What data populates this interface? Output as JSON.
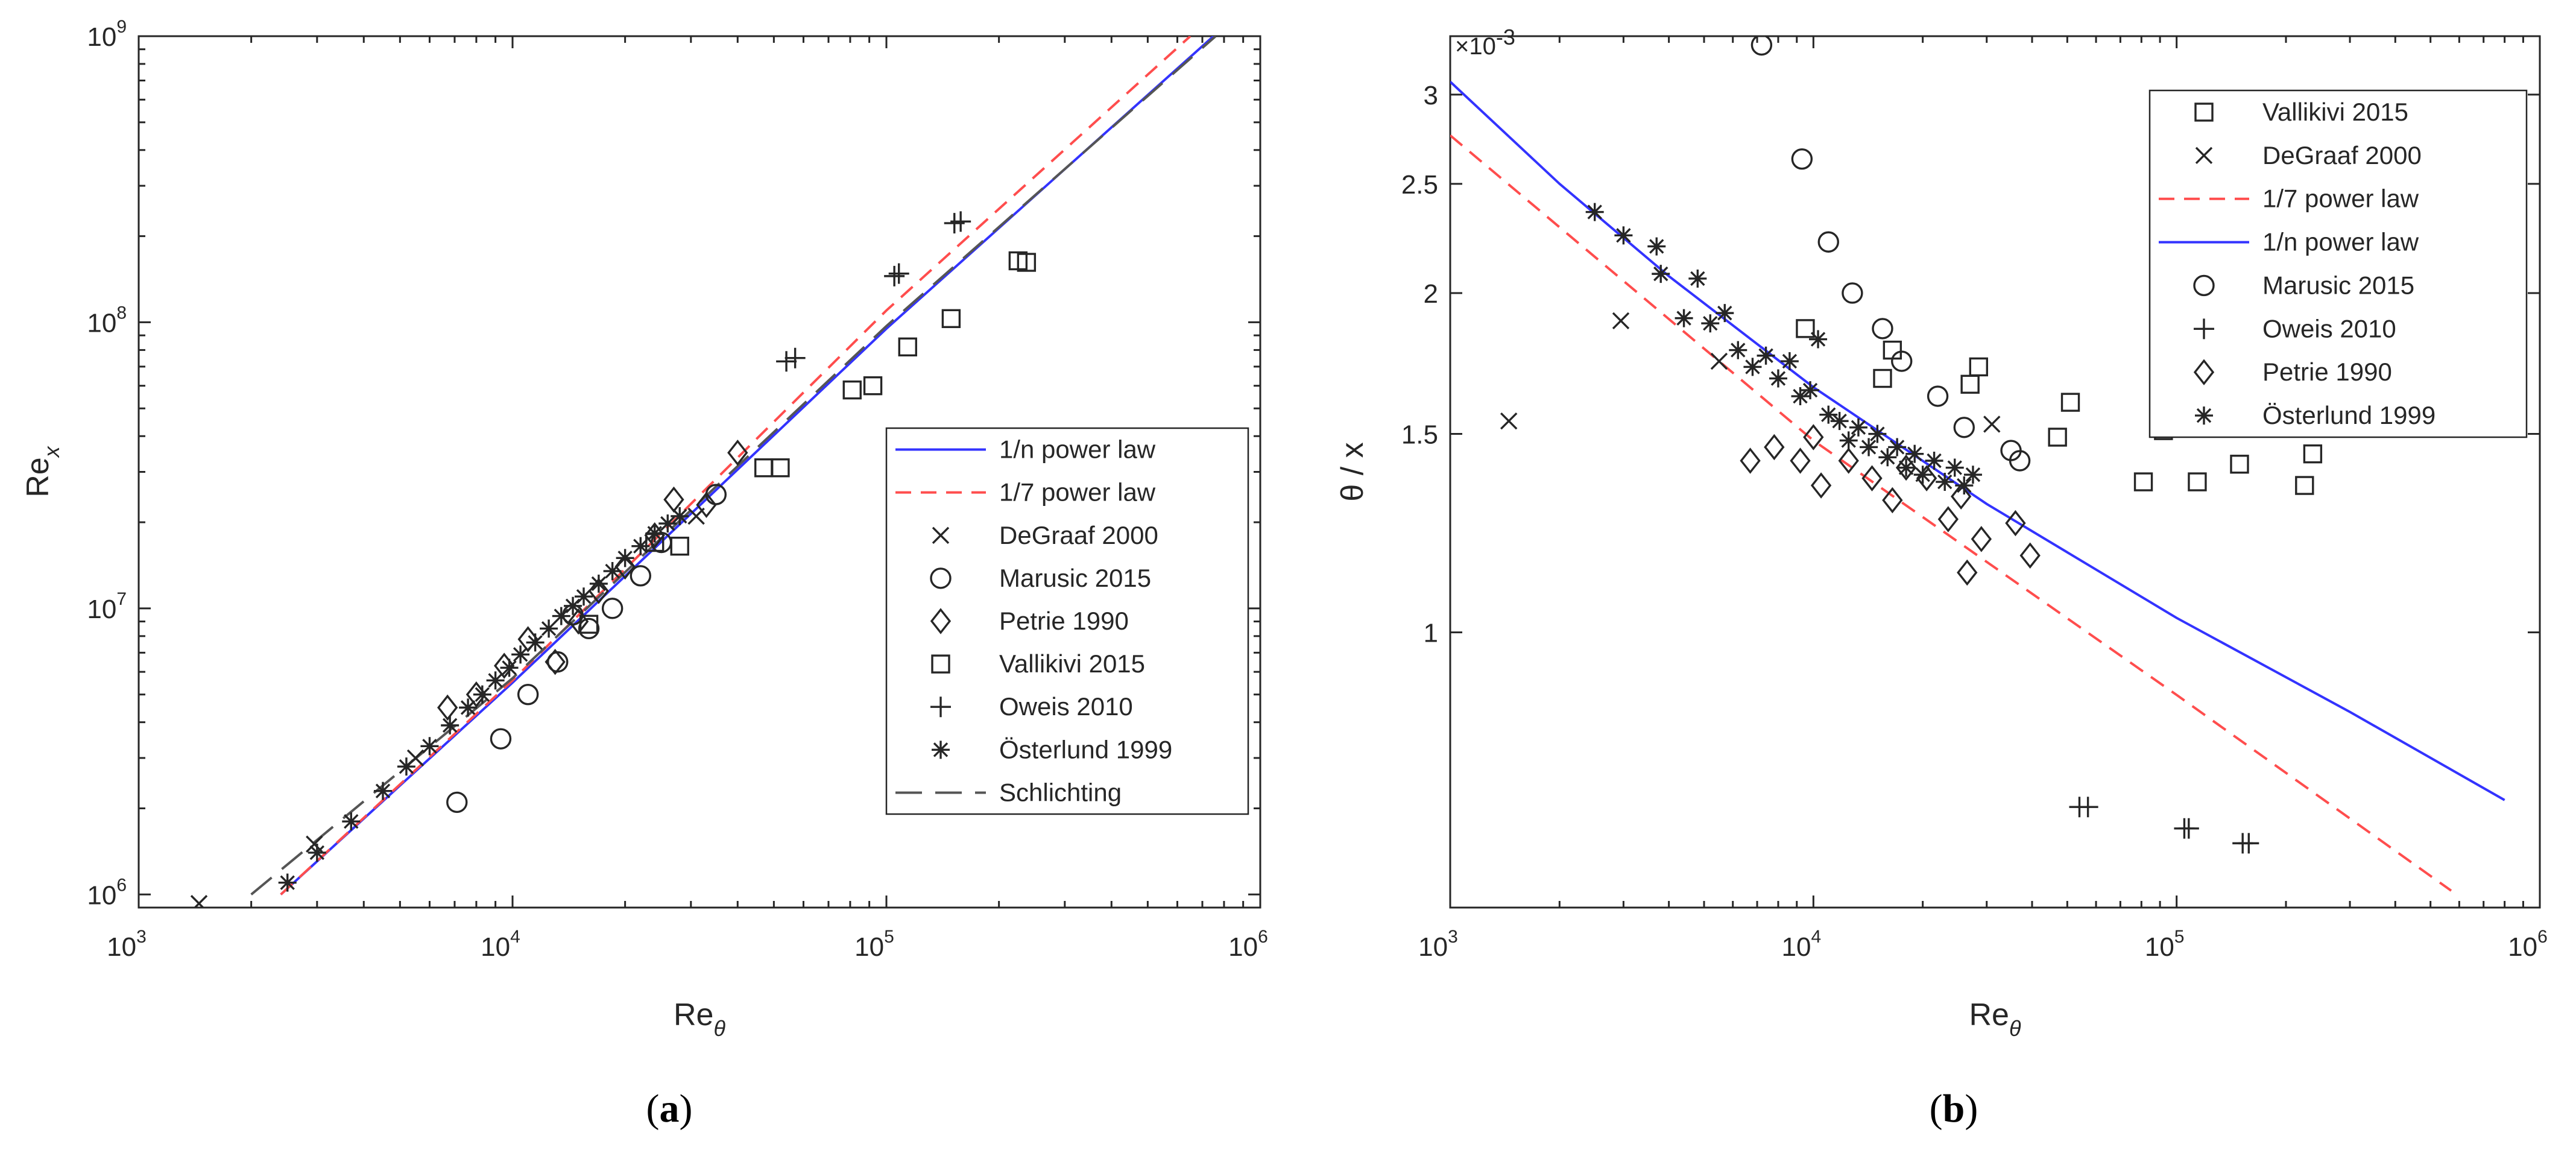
{
  "colors": {
    "blue": "#3333ff",
    "red": "#ff4d4d",
    "gray": "#555555",
    "ink": "#262626"
  },
  "chart_data": [
    {
      "panel": "(a)",
      "panel_letter": "a",
      "type": "scatter",
      "xscale": "log",
      "yscale": "log",
      "xlim": [
        1000,
        1000000
      ],
      "ylim": [
        900000,
        1000000000
      ],
      "xlabel": "Re",
      "xlabel_sub": "θ",
      "ylabel": "Re",
      "ylabel_sub": "x",
      "xticks": [
        {
          "base": "10",
          "exp": "3",
          "value": 1000
        },
        {
          "base": "10",
          "exp": "4",
          "value": 10000
        },
        {
          "base": "10",
          "exp": "5",
          "value": 100000
        },
        {
          "base": "10",
          "exp": "6",
          "value": 1000000
        }
      ],
      "yticks": [
        {
          "base": "10",
          "exp": "6",
          "value": 1000000
        },
        {
          "base": "10",
          "exp": "7",
          "value": 10000000
        },
        {
          "base": "10",
          "exp": "8",
          "value": 100000000
        },
        {
          "base": "10",
          "exp": "9",
          "value": 1000000000
        }
      ],
      "legend_position": "center-right",
      "legend": [
        "1/n power law",
        "1/7 power law",
        "DeGraaf 2000",
        "Marusic 2015",
        "Petrie 1990",
        "Vallikivi 2015",
        "Oweis 2010",
        "Österlund 1999",
        "Schlichting"
      ],
      "series": [
        {
          "name": "1/n power law",
          "kind": "line",
          "color": "blue",
          "dash": "solid",
          "points": [
            [
              2400,
              1000000
            ],
            [
              10000,
              5500000
            ],
            [
              100000,
              95000000
            ],
            [
              750000,
              1000000000
            ]
          ]
        },
        {
          "name": "1/7 power law",
          "kind": "line",
          "color": "red",
          "dash": "dash",
          "points": [
            [
              2400,
              1000000
            ],
            [
              10000,
              5600000
            ],
            [
              100000,
              110000000
            ],
            [
              650000,
              1000000000
            ]
          ]
        },
        {
          "name": "Schlichting",
          "kind": "line",
          "color": "gray",
          "dash": "longdash",
          "points": [
            [
              2000,
              1000000
            ],
            [
              10000,
              5700000
            ],
            [
              100000,
              97000000
            ],
            [
              760000,
              1000000000
            ]
          ]
        },
        {
          "name": "DeGraaf 2000",
          "kind": "marker",
          "marker": "x",
          "points": [
            [
              1450,
              930000
            ],
            [
              2950,
              1500000
            ],
            [
              5500,
              3000000
            ],
            [
              31000,
              21000000
            ]
          ]
        },
        {
          "name": "Marusic 2015",
          "kind": "marker",
          "marker": "circle",
          "points": [
            [
              7100,
              2100000
            ],
            [
              9300,
              3500000
            ],
            [
              11000,
              5000000
            ],
            [
              13200,
              6500000
            ],
            [
              14500,
              9500000
            ],
            [
              16000,
              8500000
            ],
            [
              18500,
              10000000
            ],
            [
              22000,
              13000000
            ],
            [
              25000,
              17000000
            ],
            [
              35000,
              25000000
            ]
          ]
        },
        {
          "name": "Petrie 1990",
          "kind": "marker",
          "marker": "diamond",
          "points": [
            [
              6700,
              4500000
            ],
            [
              8000,
              5000000
            ],
            [
              9500,
              6300000
            ],
            [
              11000,
              7800000
            ],
            [
              13000,
              6500000
            ],
            [
              15000,
              9000000
            ],
            [
              17000,
              11500000
            ],
            [
              20000,
              14000000
            ],
            [
              24000,
              18000000
            ],
            [
              27000,
              24000000
            ],
            [
              33000,
              23000000
            ],
            [
              40000,
              35000000
            ]
          ]
        },
        {
          "name": "Vallikivi 2015",
          "kind": "marker",
          "marker": "square",
          "points": [
            [
              16000,
              8800000
            ],
            [
              24000,
              17000000
            ],
            [
              28000,
              16500000
            ],
            [
              47000,
              31000000
            ],
            [
              52000,
              31000000
            ],
            [
              81000,
              58000000
            ],
            [
              92000,
              60000000
            ],
            [
              114000,
              82000000
            ],
            [
              149000,
              103000000
            ],
            [
              225000,
              164000000
            ],
            [
              237000,
              162000000
            ]
          ]
        },
        {
          "name": "Oweis 2010",
          "kind": "marker",
          "marker": "plus",
          "points": [
            [
              54000,
              73000000
            ],
            [
              57000,
              75000000
            ],
            [
              105000,
              145000000
            ],
            [
              108000,
              148000000
            ],
            [
              152000,
              222000000
            ],
            [
              158000,
              225000000
            ]
          ]
        },
        {
          "name": "Österlund 1999",
          "kind": "marker",
          "marker": "asterisk",
          "points": [
            [
              2500,
              1100000
            ],
            [
              3000,
              1400000
            ],
            [
              3700,
              1800000
            ],
            [
              4500,
              2300000
            ],
            [
              5200,
              2800000
            ],
            [
              6000,
              3300000
            ],
            [
              6800,
              3900000
            ],
            [
              7600,
              4500000
            ],
            [
              8300,
              5000000
            ],
            [
              9000,
              5600000
            ],
            [
              9800,
              6200000
            ],
            [
              10500,
              6900000
            ],
            [
              11500,
              7600000
            ],
            [
              12500,
              8500000
            ],
            [
              13500,
              9400000
            ],
            [
              14500,
              10200000
            ],
            [
              15500,
              11000000
            ],
            [
              17000,
              12200000
            ],
            [
              18500,
              13500000
            ],
            [
              20000,
              15000000
            ],
            [
              22000,
              16500000
            ],
            [
              24000,
              18300000
            ],
            [
              26000,
              19800000
            ],
            [
              28000,
              21000000
            ]
          ]
        }
      ]
    },
    {
      "panel": "(b)",
      "panel_letter": "b",
      "type": "scatter",
      "xscale": "log",
      "yscale": "log",
      "xlim": [
        1000,
        1000000
      ],
      "ylim": [
        0.00057,
        0.00338
      ],
      "xlabel": "Re",
      "xlabel_sub": "θ",
      "ylabel": "θ / x",
      "multiplier": "×10",
      "multiplier_exp": "-3",
      "xticks": [
        {
          "base": "10",
          "exp": "3",
          "value": 1000
        },
        {
          "base": "10",
          "exp": "4",
          "value": 10000
        },
        {
          "base": "10",
          "exp": "5",
          "value": 100000
        },
        {
          "base": "10",
          "exp": "6",
          "value": 1000000
        }
      ],
      "yticks": [
        {
          "label": "1",
          "value": 0.001
        },
        {
          "label": "1.5",
          "value": 0.0015
        },
        {
          "label": "2",
          "value": 0.002
        },
        {
          "label": "2.5",
          "value": 0.0025
        },
        {
          "label": "3",
          "value": 0.003
        }
      ],
      "legend_position": "top-right",
      "legend": [
        "Vallikivi 2015",
        "DeGraaf 2000",
        "1/7 power law",
        "1/n power law",
        "Marusic 2015",
        "Oweis 2010",
        "Petrie 1990",
        "Österlund 1999"
      ],
      "series": [
        {
          "name": "1/n power law",
          "kind": "line",
          "color": "blue",
          "dash": "solid",
          "points": [
            [
              1000,
              0.00308
            ],
            [
              2000,
              0.0025
            ],
            [
              4000,
              0.00207
            ],
            [
              10000,
              0.00165
            ],
            [
              30000,
              0.0013
            ],
            [
              100000,
              0.00103
            ],
            [
              300000,
              0.00085
            ],
            [
              800000,
              0.00071
            ]
          ]
        },
        {
          "name": "1/7 power law",
          "kind": "line",
          "color": "red",
          "dash": "dash",
          "points": [
            [
              1000,
              0.00276
            ],
            [
              10000,
              0.00148
            ],
            [
              100000,
              0.00088
            ],
            [
              570000,
              0.00059
            ]
          ]
        },
        {
          "name": "Vallikivi 2015",
          "kind": "marker",
          "marker": "square",
          "points": [
            [
              9500,
              0.00186
            ],
            [
              15500,
              0.00168
            ],
            [
              16500,
              0.00178
            ],
            [
              27000,
              0.00166
            ],
            [
              28500,
              0.00172
            ],
            [
              47000,
              0.00149
            ],
            [
              51000,
              0.0016
            ],
            [
              81000,
              0.00136
            ],
            [
              92000,
              0.00151
            ],
            [
              114000,
              0.00136
            ],
            [
              149000,
              0.00141
            ],
            [
              225000,
              0.00135
            ],
            [
              237000,
              0.00144
            ]
          ]
        },
        {
          "name": "DeGraaf 2000",
          "kind": "marker",
          "marker": "x",
          "points": [
            [
              1450,
              0.00154
            ],
            [
              2950,
              0.00189
            ],
            [
              5500,
              0.00174
            ],
            [
              31000,
              0.00153
            ]
          ]
        },
        {
          "name": "Marusic 2015",
          "kind": "marker",
          "marker": "circle",
          "points": [
            [
              7200,
              0.00332
            ],
            [
              9300,
              0.00263
            ],
            [
              11000,
              0.00222
            ],
            [
              12800,
              0.002
            ],
            [
              15500,
              0.00186
            ],
            [
              17500,
              0.00174
            ],
            [
              22000,
              0.00162
            ],
            [
              26000,
              0.00152
            ],
            [
              35000,
              0.00145
            ],
            [
              37000,
              0.00142
            ]
          ]
        },
        {
          "name": "Oweis 2010",
          "kind": "marker",
          "marker": "plus",
          "points": [
            [
              54000,
              0.0007
            ],
            [
              57000,
              0.0007
            ],
            [
              105000,
              0.00067
            ],
            [
              108000,
              0.00067
            ],
            [
              152000,
              0.00065
            ],
            [
              158000,
              0.00065
            ]
          ]
        },
        {
          "name": "Petrie 1990",
          "kind": "marker",
          "marker": "diamond",
          "points": [
            [
              6700,
              0.00142
            ],
            [
              7800,
              0.00146
            ],
            [
              9200,
              0.00142
            ],
            [
              10000,
              0.00149
            ],
            [
              10500,
              0.00135
            ],
            [
              12500,
              0.00142
            ],
            [
              14500,
              0.00137
            ],
            [
              16500,
              0.00131
            ],
            [
              18000,
              0.0014
            ],
            [
              20500,
              0.00137
            ],
            [
              23500,
              0.00126
            ],
            [
              25500,
              0.00132
            ],
            [
              26500,
              0.00113
            ],
            [
              29000,
              0.00121
            ],
            [
              36000,
              0.00125
            ],
            [
              39500,
              0.00117
            ]
          ]
        },
        {
          "name": "Österlund 1999",
          "kind": "marker",
          "marker": "asterisk",
          "points": [
            [
              2500,
              0.00236
            ],
            [
              3000,
              0.00225
            ],
            [
              3700,
              0.0022
            ],
            [
              3800,
              0.00208
            ],
            [
              4400,
              0.0019
            ],
            [
              4800,
              0.00206
            ],
            [
              5200,
              0.00188
            ],
            [
              5700,
              0.00192
            ],
            [
              6200,
              0.00178
            ],
            [
              6800,
              0.00172
            ],
            [
              7400,
              0.00176
            ],
            [
              8000,
              0.00168
            ],
            [
              8600,
              0.00174
            ],
            [
              9200,
              0.00162
            ],
            [
              9800,
              0.00164
            ],
            [
              10300,
              0.00182
            ],
            [
              11000,
              0.00156
            ],
            [
              11800,
              0.00154
            ],
            [
              12500,
              0.00148
            ],
            [
              13300,
              0.00152
            ],
            [
              14200,
              0.00146
            ],
            [
              15000,
              0.0015
            ],
            [
              16000,
              0.00143
            ],
            [
              17000,
              0.00146
            ],
            [
              18000,
              0.0014
            ],
            [
              19000,
              0.00144
            ],
            [
              20000,
              0.00138
            ],
            [
              21500,
              0.00142
            ],
            [
              23000,
              0.00136
            ],
            [
              24500,
              0.0014
            ],
            [
              26000,
              0.00135
            ],
            [
              27500,
              0.00138
            ]
          ]
        }
      ]
    }
  ]
}
